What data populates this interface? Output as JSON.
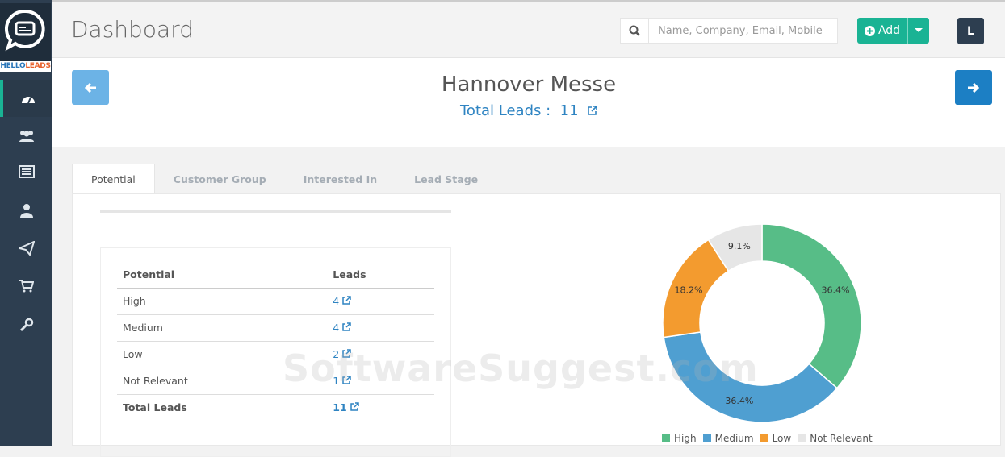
{
  "brand": {
    "logo_text_a": "HELLO",
    "logo_text_b": "LEADS"
  },
  "sidebar": {
    "items": [
      {
        "icon": "dashboard-icon",
        "active": true
      },
      {
        "icon": "users-icon"
      },
      {
        "icon": "list-icon"
      },
      {
        "icon": "user-icon"
      },
      {
        "icon": "send-icon"
      },
      {
        "icon": "cart-icon"
      },
      {
        "icon": "wrench-icon"
      }
    ]
  },
  "header": {
    "title": "Dashboard",
    "search_placeholder": "Name, Company, Email, Mobile",
    "add_label": "Add",
    "avatar_letter": "L"
  },
  "event": {
    "name": "Hannover Messe",
    "total_label": "Total Leads :",
    "total_value": "11"
  },
  "tabs": [
    {
      "label": "Potential",
      "active": true
    },
    {
      "label": "Customer Group"
    },
    {
      "label": "Interested In"
    },
    {
      "label": "Lead Stage"
    }
  ],
  "table": {
    "headers": [
      "Potential",
      "Leads"
    ],
    "rows": [
      {
        "label": "High",
        "value": "4"
      },
      {
        "label": "Medium",
        "value": "4"
      },
      {
        "label": "Low",
        "value": "2"
      },
      {
        "label": "Not Relevant",
        "value": "1"
      }
    ],
    "total": {
      "label": "Total Leads",
      "value": "11"
    }
  },
  "chart_data": {
    "type": "pie",
    "donut": true,
    "categories": [
      "High",
      "Medium",
      "Low",
      "Not Relevant"
    ],
    "values": [
      4,
      4,
      2,
      1
    ],
    "labels": [
      "36.4%",
      "36.4%",
      "18.2%",
      "9.1%"
    ],
    "colors": [
      "#57bd87",
      "#4f9fd1",
      "#f39b2f",
      "#e6e6e6"
    ],
    "legend_position": "bottom"
  },
  "watermark": "SoftwareSuggest.com"
}
